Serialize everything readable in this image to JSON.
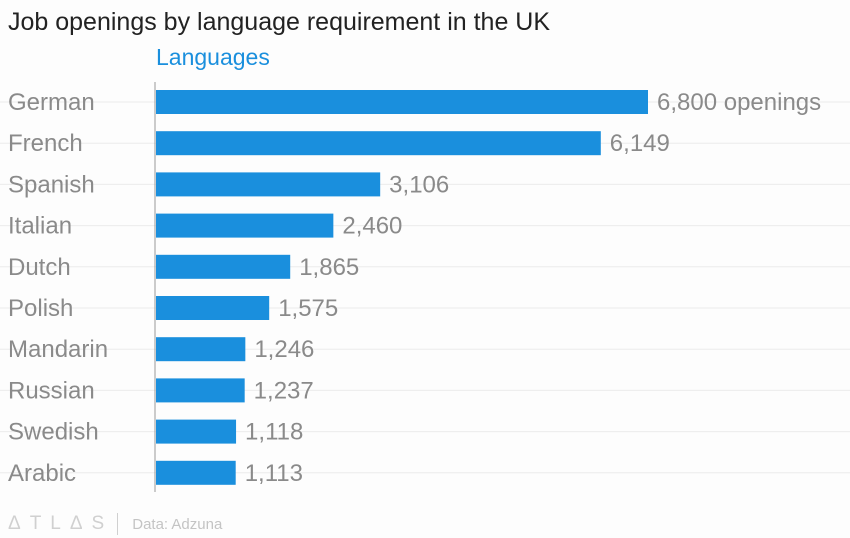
{
  "chart_data": {
    "type": "bar",
    "orientation": "horizontal",
    "title": "Job openings by language requirement in the UK",
    "legend": "Languages",
    "categories": [
      "German",
      "French",
      "Spanish",
      "Italian",
      "Dutch",
      "Polish",
      "Mandarin",
      "Russian",
      "Swedish",
      "Arabic"
    ],
    "values": [
      6800,
      6149,
      3106,
      2460,
      1865,
      1575,
      1246,
      1237,
      1118,
      1113
    ],
    "data_labels": [
      "6,800 openings",
      "6,149",
      "3,106",
      "2,460",
      "1,865",
      "1,575",
      "1,246",
      "1,237",
      "1,118",
      "1,113"
    ],
    "xlim": [
      0,
      6800
    ],
    "grid": true,
    "bar_color": "#1a8fdd"
  },
  "footer": {
    "logo": "ATLAS",
    "source": "Data: Adzuna"
  }
}
